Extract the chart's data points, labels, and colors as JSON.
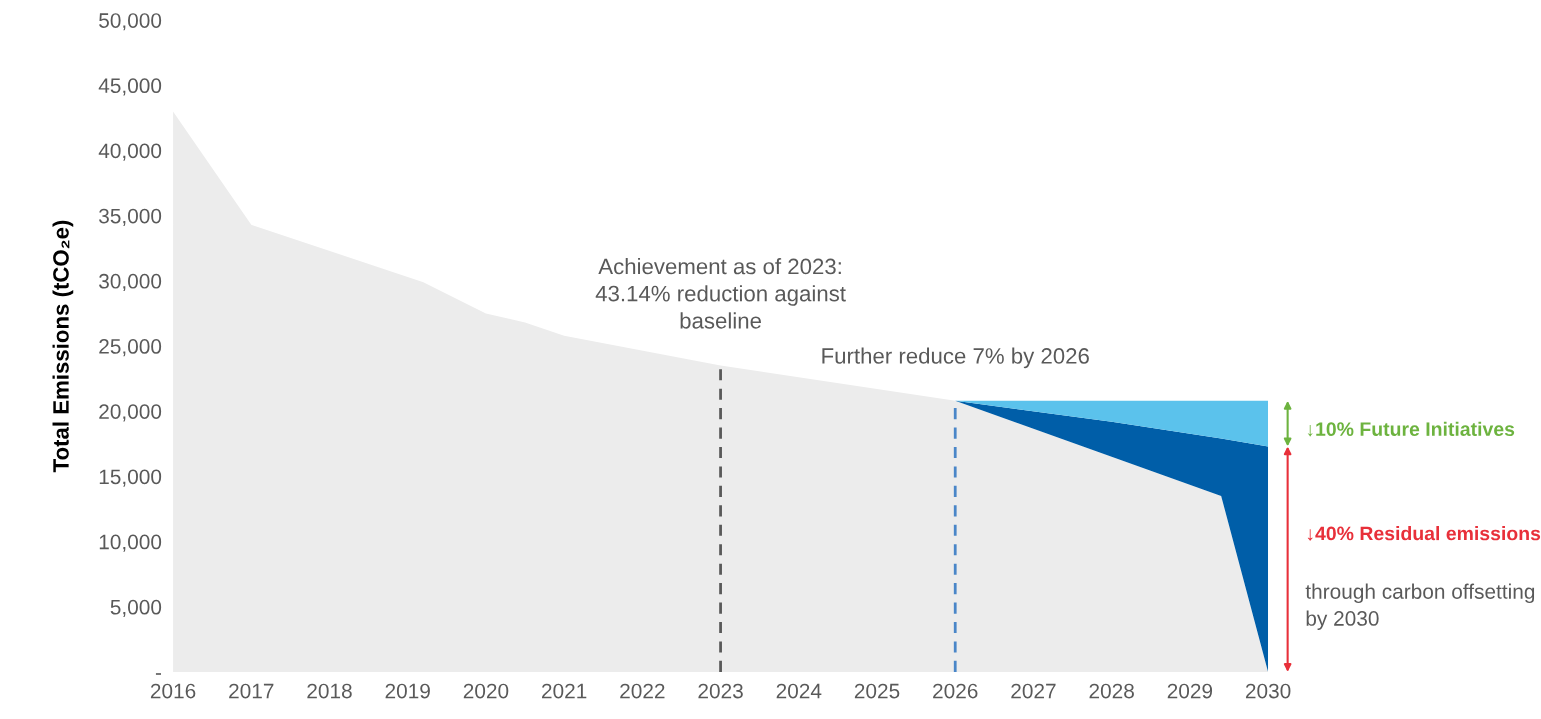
{
  "chart_data": {
    "type": "area",
    "stacked": true,
    "ylabel": "Total Emissions (tCO₂e)",
    "x": [
      2016,
      2017,
      2019.2,
      2020,
      2020.5,
      2021,
      2023,
      2026,
      2028,
      2029.4,
      2030
    ],
    "series": [
      {
        "color": "#ececec",
        "values": [
          43000,
          34300,
          29900,
          27500,
          26800,
          25800,
          23500,
          20800,
          16500,
          13500,
          0
        ]
      },
      {
        "color": "#005ea8",
        "values": [
          null,
          null,
          null,
          null,
          null,
          null,
          null,
          0,
          2700,
          4400,
          17300
        ]
      },
      {
        "color": "#5bc2ec",
        "values": [
          null,
          null,
          null,
          null,
          null,
          null,
          null,
          0,
          1600,
          2900,
          3500
        ]
      }
    ],
    "xticks": [
      2016,
      2017,
      2018,
      2019,
      2020,
      2021,
      2022,
      2023,
      2024,
      2025,
      2026,
      2027,
      2028,
      2029,
      2030
    ],
    "xlim": [
      2016,
      2030
    ],
    "ylim": [
      0,
      50000
    ],
    "yticks": [
      {
        "value": 0,
        "label": "-"
      },
      {
        "value": 5000,
        "label": "5,000"
      },
      {
        "value": 10000,
        "label": "10,000"
      },
      {
        "value": 15000,
        "label": "15,000"
      },
      {
        "value": 20000,
        "label": "20,000"
      },
      {
        "value": 25000,
        "label": "25,000"
      },
      {
        "value": 30000,
        "label": "30,000"
      },
      {
        "value": 35000,
        "label": "35,000"
      },
      {
        "value": 40000,
        "label": "40,000"
      },
      {
        "value": 45000,
        "label": "45,000"
      },
      {
        "value": 50000,
        "label": "50,000"
      }
    ],
    "ref_lines": [
      {
        "axis": "x",
        "value": 2023,
        "label": "Achievement as of 2023: 43.14% reduction against baseline",
        "color": "#595959",
        "line_style": "dashed"
      },
      {
        "axis": "x",
        "value": 2026,
        "label": "Further reduce 7% by 2026",
        "color": "#4a86c8",
        "line_style": "dashed"
      }
    ],
    "annotations": [
      "↓10% Future Initiatives",
      "↓40% Residual emissions",
      "through carbon offsetting by 2030"
    ],
    "grid": false,
    "legend": false
  }
}
